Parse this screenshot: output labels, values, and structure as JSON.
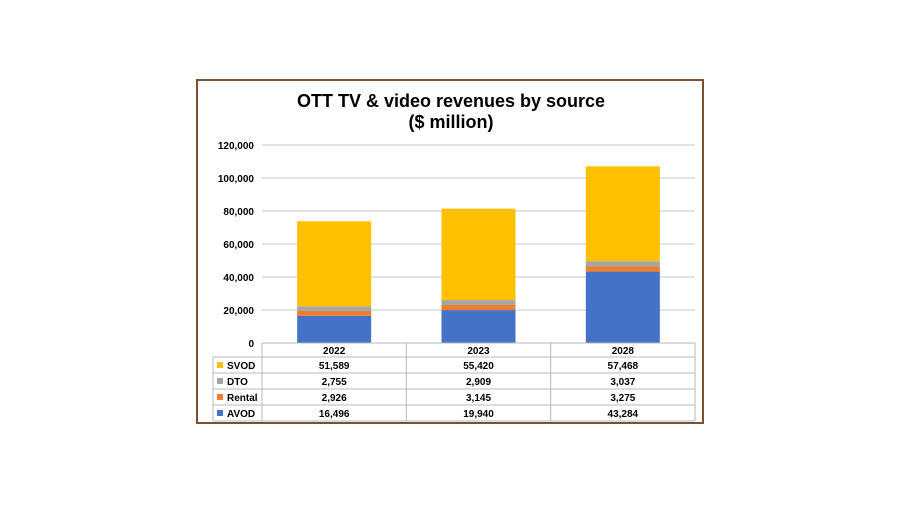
{
  "chart_data": {
    "type": "bar",
    "stacked": true,
    "title": "OTT TV & video revenues by source",
    "subtitle": "($ million)",
    "categories": [
      "2022",
      "2023",
      "2028"
    ],
    "series": [
      {
        "name": "AVOD",
        "values": [
          16496,
          19940,
          43284
        ],
        "color": "#4472C4"
      },
      {
        "name": "Rental",
        "values": [
          2926,
          3145,
          3275
        ],
        "color": "#ED7D31"
      },
      {
        "name": "DTO",
        "values": [
          2755,
          2909,
          3037
        ],
        "color": "#A5A5A5"
      },
      {
        "name": "SVOD",
        "values": [
          51589,
          55420,
          57468
        ],
        "color": "#FFC000"
      }
    ],
    "table_rows": [
      {
        "name": "SVOD",
        "values": [
          "51,589",
          "55,420",
          "57,468"
        ],
        "color": "#FFC000"
      },
      {
        "name": "DTO",
        "values": [
          "2,755",
          "2,909",
          "3,037"
        ],
        "color": "#A5A5A5"
      },
      {
        "name": "Rental",
        "values": [
          "2,926",
          "3,145",
          "3,275"
        ],
        "color": "#ED7D31"
      },
      {
        "name": "AVOD",
        "values": [
          "16,496",
          "19,940",
          "43,284"
        ],
        "color": "#4472C4"
      }
    ],
    "yticks": [
      "0",
      "20,000",
      "40,000",
      "60,000",
      "80,000",
      "100,000",
      "120,000"
    ],
    "ylim": [
      0,
      120000
    ],
    "grid": true,
    "legend": "data-table"
  }
}
